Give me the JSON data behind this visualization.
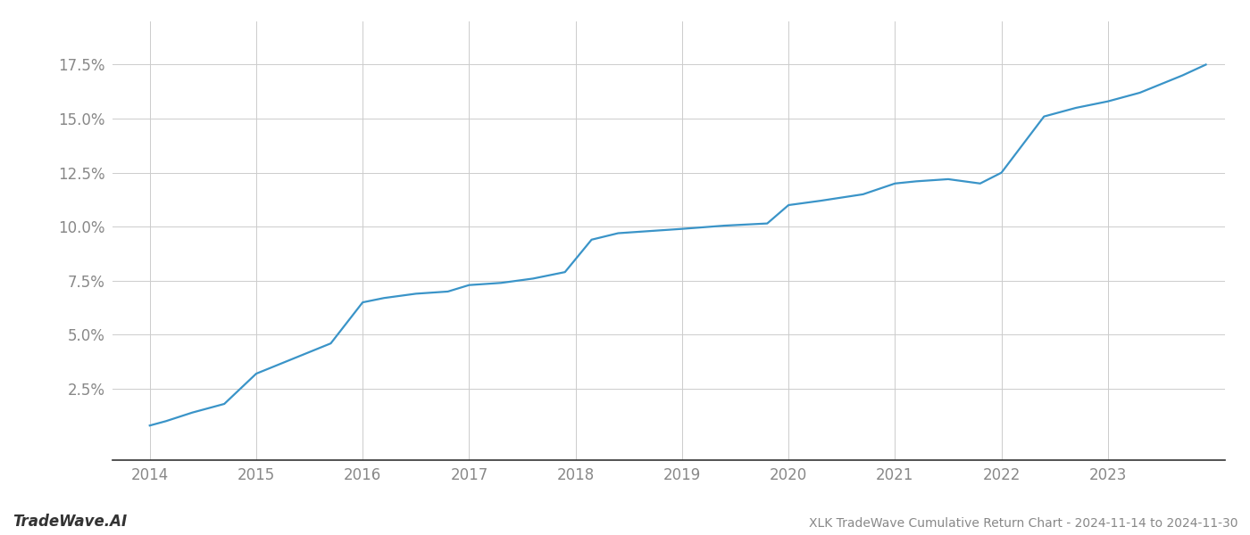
{
  "title": "XLK TradeWave Cumulative Return Chart - 2024-11-14 to 2024-11-30",
  "watermark": "TradeWave.AI",
  "line_color": "#3a94c8",
  "background_color": "#ffffff",
  "grid_color": "#cccccc",
  "x_values": [
    2014.0,
    2014.15,
    2014.4,
    2014.7,
    2015.0,
    2015.3,
    2015.7,
    2016.0,
    2016.2,
    2016.5,
    2016.8,
    2017.0,
    2017.3,
    2017.6,
    2017.9,
    2018.15,
    2018.4,
    2018.7,
    2019.0,
    2019.4,
    2019.8,
    2020.0,
    2020.3,
    2020.7,
    2021.0,
    2021.2,
    2021.5,
    2021.8,
    2022.0,
    2022.4,
    2022.7,
    2023.0,
    2023.3,
    2023.7,
    2023.92
  ],
  "y_values": [
    0.008,
    0.01,
    0.014,
    0.018,
    0.032,
    0.038,
    0.046,
    0.065,
    0.067,
    0.069,
    0.07,
    0.073,
    0.074,
    0.076,
    0.079,
    0.094,
    0.097,
    0.098,
    0.099,
    0.1005,
    0.1015,
    0.11,
    0.112,
    0.115,
    0.12,
    0.121,
    0.122,
    0.12,
    0.125,
    0.151,
    0.155,
    0.158,
    0.162,
    0.17,
    0.175
  ],
  "x_ticks": [
    2014,
    2015,
    2016,
    2017,
    2018,
    2019,
    2020,
    2021,
    2022,
    2023
  ],
  "y_ticks": [
    0.025,
    0.05,
    0.075,
    0.1,
    0.125,
    0.15,
    0.175
  ],
  "y_tick_labels": [
    "2.5%",
    "5.0%",
    "7.5%",
    "10.0%",
    "12.5%",
    "15.0%",
    "17.5%"
  ],
  "xlim": [
    2013.65,
    2024.1
  ],
  "ylim": [
    -0.008,
    0.195
  ],
  "tick_color": "#888888",
  "spine_color": "#999999",
  "label_fontsize": 11,
  "tick_fontsize": 12,
  "line_width": 1.6
}
